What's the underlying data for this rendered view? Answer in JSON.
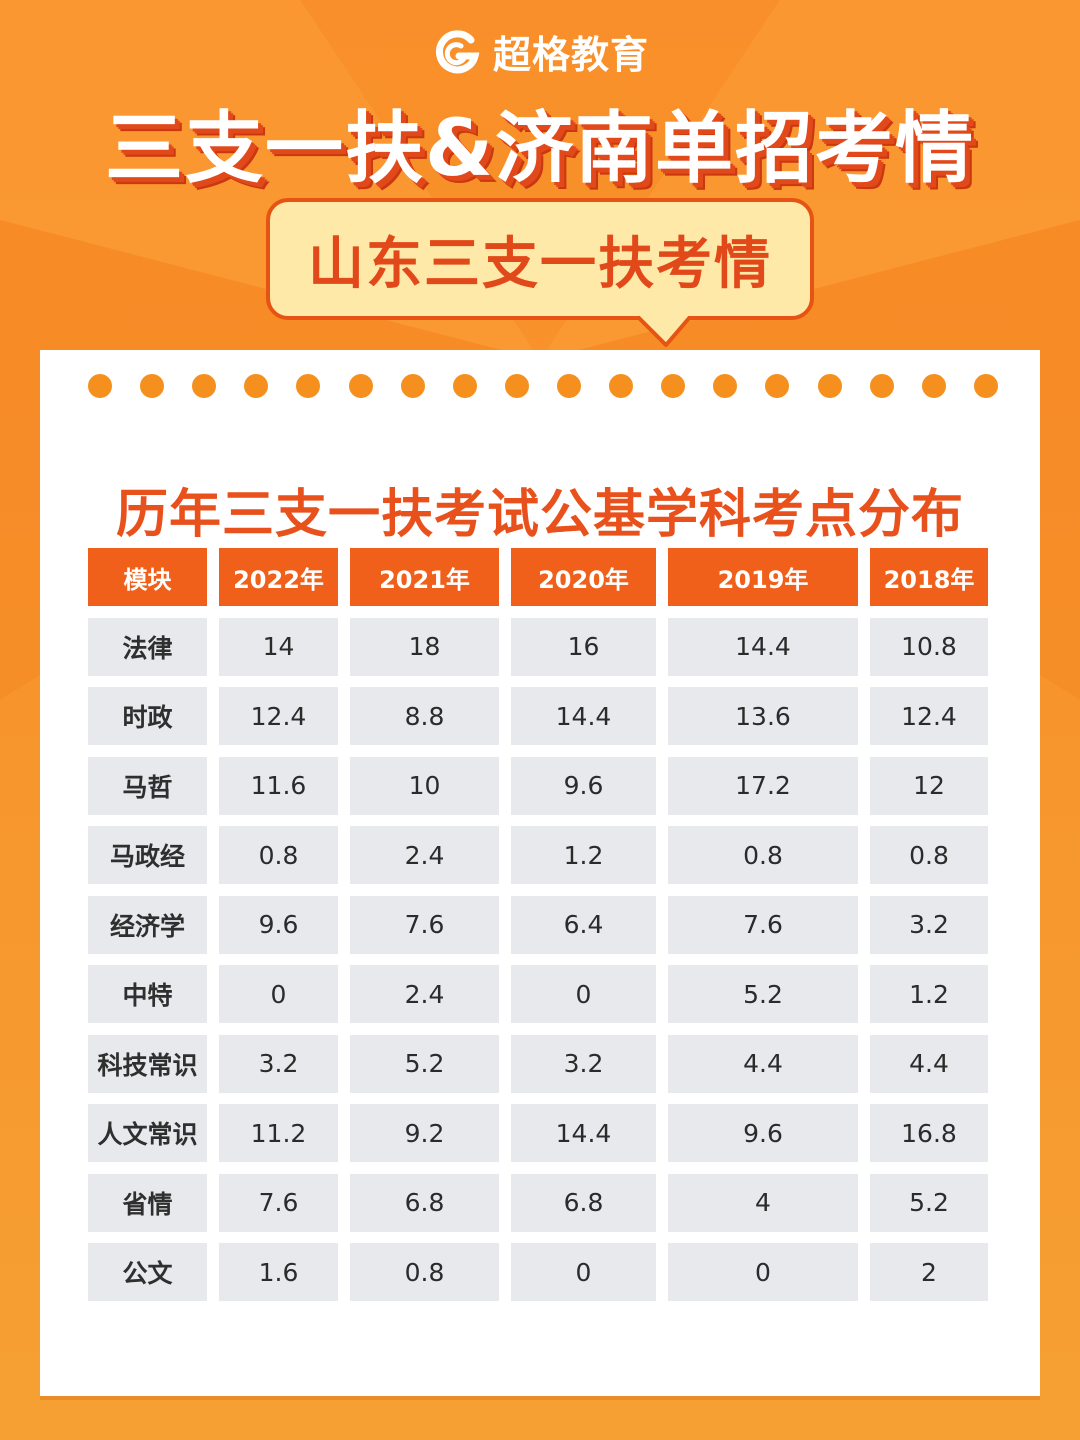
{
  "brand": {
    "name": "超格教育",
    "logo_icon": "g-logo-icon"
  },
  "header": {
    "title": "三支一扶&济南单招考情",
    "subtitle": "山东三支一扶考情"
  },
  "section": {
    "title": "历年三支一扶考试公基学科考点分布"
  },
  "table": {
    "columns": [
      "模块",
      "2022年",
      "2021年",
      "2020年",
      "2019年",
      "2018年"
    ],
    "rows": [
      [
        "法律",
        "14",
        "18",
        "16",
        "14.4",
        "10.8"
      ],
      [
        "时政",
        "12.4",
        "8.8",
        "14.4",
        "13.6",
        "12.4"
      ],
      [
        "马哲",
        "11.6",
        "10",
        "9.6",
        "17.2",
        "12"
      ],
      [
        "马政经",
        "0.8",
        "2.4",
        "1.2",
        "0.8",
        "0.8"
      ],
      [
        "经济学",
        "9.6",
        "7.6",
        "6.4",
        "7.6",
        "3.2"
      ],
      [
        "中特",
        "0",
        "2.4",
        "0",
        "5.2",
        "1.2"
      ],
      [
        "科技常识",
        "3.2",
        "5.2",
        "3.2",
        "4.4",
        "4.4"
      ],
      [
        "人文常识",
        "11.2",
        "9.2",
        "14.4",
        "9.6",
        "16.8"
      ],
      [
        "省情",
        "7.6",
        "6.8",
        "6.8",
        "4",
        "5.2"
      ],
      [
        "公文",
        "1.6",
        "0.8",
        "0",
        "0",
        "2"
      ]
    ]
  },
  "colors": {
    "background": "#f98f2a",
    "accent": "#f0601a",
    "title_shadow": "#e2491a",
    "bubble_fill": "#ffe9a8",
    "cell_fill": "#e8e9ec"
  }
}
